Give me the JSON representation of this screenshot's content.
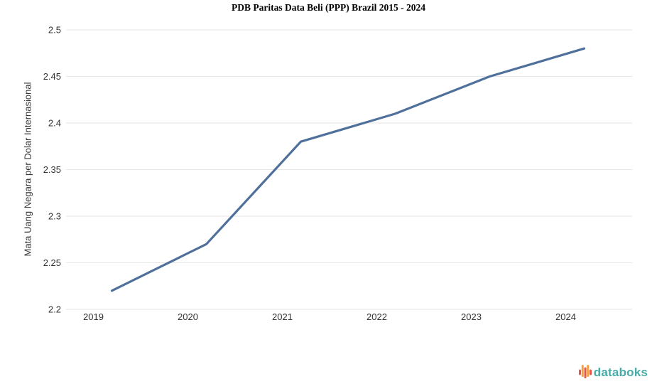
{
  "chart_data": {
    "type": "line",
    "title": "PDB Paritas Data Beli (PPP) Brazil 2015 - 2024",
    "xlabel": "",
    "ylabel": "Mata Uang Negara per Dolar Internasional",
    "categories": [
      "2019",
      "2020",
      "2021",
      "2022",
      "2023",
      "2024"
    ],
    "series": [
      {
        "values": [
          2.22,
          2.27,
          2.38,
          2.41,
          2.45,
          2.48
        ]
      }
    ],
    "ylim": [
      2.2,
      2.5
    ],
    "y_tick_step": 0.05,
    "grid": "horizontal-only",
    "legend": "none"
  },
  "colors": {
    "line": "#4f709b",
    "gridline": "#e6e6e6",
    "tick_label": "#333333",
    "title": "#000000",
    "background": "#ffffff"
  },
  "branding": {
    "logo_text": "databoks",
    "logo_text_color": "#47aba7",
    "logo_bar_colors": [
      "#e8574e",
      "#f5a13d",
      "#e8574e",
      "#f5a13d",
      "#e8574e"
    ]
  }
}
